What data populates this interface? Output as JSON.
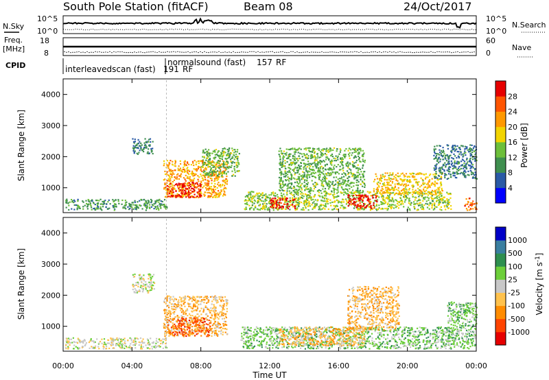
{
  "header": {
    "title": "South Pole Station (fitACF)",
    "beam": "Beam 08",
    "date": "24/Oct/2017"
  },
  "top_panels": {
    "nsky_label": "N.Sky",
    "nsky_ticks": [
      "10^5",
      "10^0"
    ],
    "nsearch_label": "N.Search",
    "nsearch_ticks": [
      "10^5",
      "10^0"
    ],
    "freq_label": "Freq.",
    "freq_unit": "[MHz]",
    "freq_ticks": [
      "18",
      "8"
    ],
    "nave_label": "Nave",
    "nave_ticks": [
      "60",
      "0"
    ],
    "cpid_label": "CPID",
    "cpid_modes": [
      {
        "text": "interleavedscan (fast)",
        "id": "191",
        "rf": "RF"
      },
      {
        "text": "normalsound (fast)",
        "id": "157",
        "rf": "RF"
      }
    ]
  },
  "colors": {
    "power_scale": [
      "#0000ff",
      "#2a5aa6",
      "#3f8f4f",
      "#6dbf3a",
      "#f2d400",
      "#ff9900",
      "#ff5500",
      "#e60000"
    ],
    "velocity_scale": [
      "#e60000",
      "#ff4400",
      "#ff8c00",
      "#ffc24d",
      "#c8c8c8",
      "#6dcf3a",
      "#2e8f4f",
      "#3a7fa0",
      "#0000c8"
    ]
  },
  "chart_data": [
    {
      "type": "heatmap",
      "name": "power",
      "ylabel": "Slant Range [km]",
      "xlabel": "Time UT",
      "yticks": [
        "1000",
        "2000",
        "3000",
        "4000"
      ],
      "ylim": [
        200,
        4500
      ],
      "xticks": [
        "00:00",
        "04:00",
        "08:00",
        "12:00",
        "16:00",
        "20:00",
        "00:00"
      ],
      "xlim_hours": [
        0,
        24
      ],
      "colorbar": {
        "label": "Power [dB]",
        "ticks": [
          "4",
          "8",
          "12",
          "16",
          "20",
          "24",
          "28"
        ],
        "range": [
          0,
          30
        ]
      },
      "regions": [
        {
          "t0": 0.1,
          "t1": 6.0,
          "r0": 300,
          "r1": 650,
          "value": 10
        },
        {
          "t0": 4.0,
          "t1": 5.2,
          "r0": 2100,
          "r1": 2600,
          "value": 8
        },
        {
          "t0": 5.8,
          "t1": 9.5,
          "r0": 700,
          "r1": 1900,
          "value": 20
        },
        {
          "t0": 6.0,
          "t1": 8.0,
          "r0": 700,
          "r1": 1200,
          "value": 28
        },
        {
          "t0": 8.0,
          "t1": 10.2,
          "r0": 1400,
          "r1": 2300,
          "value": 12
        },
        {
          "t0": 10.5,
          "t1": 22.5,
          "r0": 300,
          "r1": 900,
          "value": 14
        },
        {
          "t0": 12.0,
          "t1": 13.5,
          "r0": 350,
          "r1": 700,
          "value": 28
        },
        {
          "t0": 16.5,
          "t1": 18.2,
          "r0": 350,
          "r1": 800,
          "value": 28
        },
        {
          "t0": 18.0,
          "t1": 22.0,
          "r0": 800,
          "r1": 1500,
          "value": 18
        },
        {
          "t0": 12.5,
          "t1": 17.5,
          "r0": 900,
          "r1": 2300,
          "value": 12
        },
        {
          "t0": 21.5,
          "t1": 24.0,
          "r0": 1300,
          "r1": 2400,
          "value": 8
        },
        {
          "t0": 23.3,
          "t1": 24.0,
          "r0": 300,
          "r1": 700,
          "value": 24
        }
      ]
    },
    {
      "type": "heatmap",
      "name": "velocity",
      "ylabel": "Slant Range [km]",
      "xlabel": "Time UT",
      "yticks": [
        "1000",
        "2000",
        "3000",
        "4000"
      ],
      "ylim": [
        200,
        4500
      ],
      "xticks": [
        "00:00",
        "04:00",
        "08:00",
        "12:00",
        "16:00",
        "20:00",
        "00:00"
      ],
      "xlim_hours": [
        0,
        24
      ],
      "colorbar": {
        "label": "Velocity [m s^-1]",
        "ticks": [
          "-1000",
          "-500",
          "-100",
          "-25",
          "25",
          "100",
          "500",
          "1000"
        ],
        "range": [
          -1200,
          1200
        ]
      },
      "regions": [
        {
          "t0": 0.1,
          "t1": 6.0,
          "r0": 300,
          "r1": 650,
          "value": 0
        },
        {
          "t0": 4.0,
          "t1": 5.3,
          "r0": 2100,
          "r1": 2700,
          "value": 0
        },
        {
          "t0": 5.8,
          "t1": 9.5,
          "r0": 700,
          "r1": 2000,
          "value": -300
        },
        {
          "t0": 6.0,
          "t1": 8.5,
          "r0": 700,
          "r1": 1300,
          "value": -700
        },
        {
          "t0": 10.3,
          "t1": 22.8,
          "r0": 300,
          "r1": 1000,
          "value": 250
        },
        {
          "t0": 12.5,
          "t1": 17.5,
          "r0": 400,
          "r1": 1000,
          "value": -300
        },
        {
          "t0": 16.5,
          "t1": 19.5,
          "r0": 900,
          "r1": 2300,
          "value": -300
        },
        {
          "t0": 22.3,
          "t1": 24.0,
          "r0": 300,
          "r1": 1800,
          "value": 250
        }
      ]
    }
  ]
}
